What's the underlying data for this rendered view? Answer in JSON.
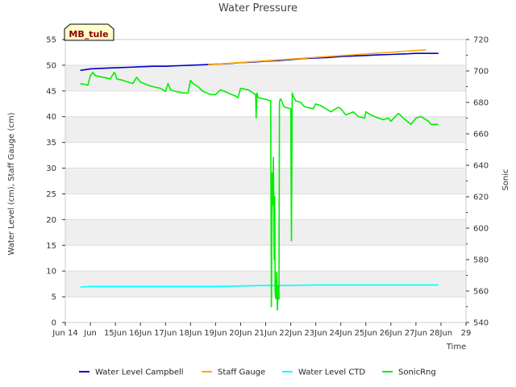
{
  "chart_data": {
    "type": "line",
    "title": "Water Pressure",
    "xlabel": "Time",
    "ylabel_left": "Water Level (cm), Staff Gauge (cm)",
    "ylabel_right": "Sonic",
    "station_label": "MB_tule",
    "x_range": [
      13.0,
      29.0
    ],
    "x_ticks": [
      {
        "v": 13,
        "label": "Jun 14"
      },
      {
        "v": 14,
        "label": "Jun"
      },
      {
        "v": 15,
        "label": "15Jun"
      },
      {
        "v": 16,
        "label": "16Jun"
      },
      {
        "v": 17,
        "label": "17Jun"
      },
      {
        "v": 18,
        "label": "18Jun"
      },
      {
        "v": 19,
        "label": "19Jun"
      },
      {
        "v": 20,
        "label": "20Jun"
      },
      {
        "v": 21,
        "label": "21Jun"
      },
      {
        "v": 22,
        "label": "22Jun"
      },
      {
        "v": 23,
        "label": "23Jun"
      },
      {
        "v": 24,
        "label": "24Jun"
      },
      {
        "v": 25,
        "label": "25Jun"
      },
      {
        "v": 26,
        "label": "26Jun"
      },
      {
        "v": 27,
        "label": "27Jun"
      },
      {
        "v": 28,
        "label": "28Jun"
      },
      {
        "v": 29,
        "label": "29"
      }
    ],
    "ylim_left": [
      0,
      55
    ],
    "yticks_left": [
      0,
      5,
      10,
      15,
      20,
      25,
      30,
      35,
      40,
      45,
      50,
      55
    ],
    "ylim_right": [
      540,
      720
    ],
    "yticks_right": [
      540,
      560,
      580,
      600,
      620,
      640,
      660,
      680,
      700,
      720
    ],
    "series": [
      {
        "name": "Water Level Campbell",
        "color": "#0000cc",
        "axis": "left",
        "x": [
          13.6,
          14.0,
          14.5,
          15.0,
          15.5,
          16.0,
          16.5,
          17.0,
          17.5,
          18.0,
          18.5,
          19.0,
          19.5,
          20.0,
          20.5,
          21.0,
          21.5,
          22.0,
          22.5,
          23.0,
          23.5,
          24.0,
          24.5,
          25.0,
          25.5,
          26.0,
          26.5,
          27.0,
          27.5,
          27.9
        ],
        "y": [
          49.0,
          49.3,
          49.4,
          49.5,
          49.6,
          49.7,
          49.8,
          49.8,
          49.9,
          50.0,
          50.1,
          50.2,
          50.3,
          50.5,
          50.6,
          50.8,
          50.9,
          51.1,
          51.3,
          51.4,
          51.5,
          51.7,
          51.8,
          51.9,
          52.0,
          52.1,
          52.2,
          52.3,
          52.3,
          52.3
        ]
      },
      {
        "name": "Staff Gauge",
        "color": "#ffa500",
        "axis": "left",
        "x": [
          18.7,
          27.4
        ],
        "y": [
          50.1,
          53.0
        ]
      },
      {
        "name": "Water Level CTD",
        "color": "#00ffff",
        "axis": "left",
        "x": [
          13.6,
          14.0,
          15.0,
          16.0,
          17.0,
          18.0,
          19.0,
          20.0,
          21.0,
          22.0,
          23.0,
          24.0,
          25.0,
          26.0,
          27.0,
          27.9
        ],
        "y": [
          6.9,
          7.0,
          7.0,
          7.0,
          7.0,
          7.0,
          7.0,
          7.1,
          7.2,
          7.2,
          7.3,
          7.3,
          7.3,
          7.3,
          7.3,
          7.3
        ]
      },
      {
        "name": "SonicRng",
        "color": "#00ee00",
        "axis": "right",
        "x": [
          13.6,
          13.9,
          14.0,
          14.1,
          14.2,
          14.5,
          14.8,
          14.95,
          15.0,
          15.05,
          15.3,
          15.5,
          15.7,
          15.85,
          15.9,
          16.0,
          16.3,
          16.5,
          16.8,
          17.0,
          17.1,
          17.2,
          17.4,
          17.7,
          17.9,
          18.0,
          18.05,
          18.1,
          18.3,
          18.5,
          18.8,
          19.0,
          19.2,
          19.5,
          19.8,
          19.9,
          20.0,
          20.3,
          20.5,
          20.6,
          20.62,
          20.65,
          20.7,
          21.0,
          21.2,
          21.23,
          21.26,
          21.28,
          21.31,
          21.34,
          21.36,
          21.38,
          21.41,
          21.44,
          21.47,
          21.5,
          21.53,
          21.55,
          21.58,
          21.61,
          21.64,
          21.68,
          21.75,
          22.0,
          22.03,
          22.06,
          22.1,
          22.2,
          22.4,
          22.5,
          22.6,
          22.9,
          23.0,
          23.2,
          23.5,
          23.6,
          23.9,
          24.0,
          24.2,
          24.5,
          24.7,
          24.95,
          25.0,
          25.2,
          25.5,
          25.7,
          25.9,
          26.0,
          26.3,
          26.5,
          26.8,
          27.0,
          27.2,
          27.5,
          27.6,
          27.9
        ],
        "y": [
          692,
          691,
          697,
          699,
          697,
          696,
          695,
          699,
          698,
          695,
          694,
          693,
          692,
          696,
          695,
          693,
          691,
          690,
          689,
          687,
          692,
          688,
          687,
          686,
          686,
          694,
          693,
          692,
          690,
          687,
          685,
          685,
          688,
          686,
          684,
          683,
          689,
          688,
          686,
          685,
          670,
          686,
          683,
          682,
          681,
          550,
          635,
          615,
          645,
          580,
          620,
          560,
          555,
          572,
          548,
          563,
          555,
          680,
          682,
          682,
          681,
          679,
          677,
          676,
          592,
          686,
          684,
          681,
          680,
          678,
          677,
          676,
          679,
          678,
          675,
          674,
          677,
          676,
          672,
          674,
          671,
          670,
          674,
          672,
          670,
          669,
          670,
          668,
          673,
          670,
          666,
          670,
          671,
          668,
          666,
          666
        ]
      }
    ]
  }
}
